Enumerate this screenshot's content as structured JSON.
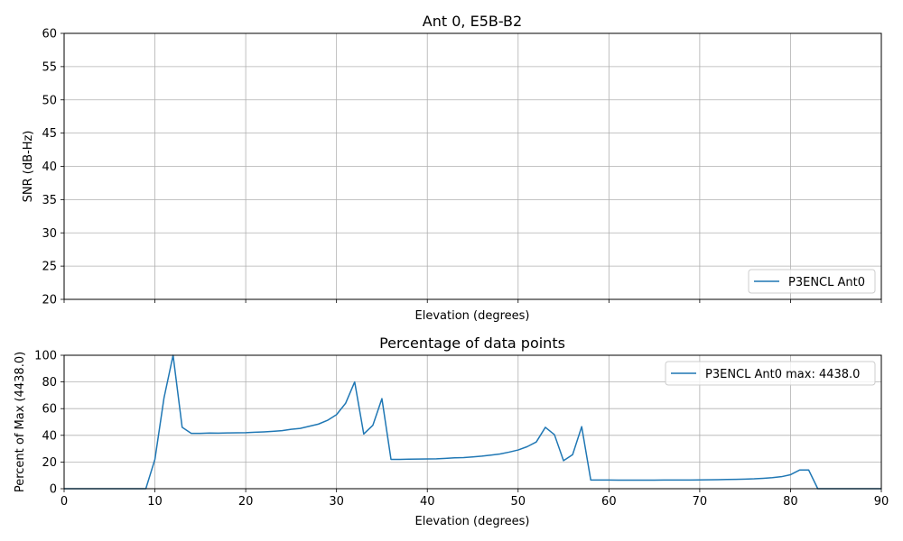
{
  "chart_data": [
    {
      "type": "line",
      "title": "Ant 0, E5B-B2",
      "xlabel": "Elevation (degrees)",
      "ylabel": "SNR (dB-Hz)",
      "xlim": [
        0,
        90
      ],
      "ylim": [
        20,
        60
      ],
      "xticks": [
        0,
        10,
        20,
        30,
        40,
        50,
        60,
        70,
        80,
        90
      ],
      "yticks": [
        20,
        25,
        30,
        35,
        40,
        45,
        50,
        55,
        60
      ],
      "x_tick_labels_visible": false,
      "grid": true,
      "legend": "lower-right",
      "series": [
        {
          "name": "P3ENCL Ant0",
          "color": "#1f77b4",
          "x": [],
          "y": []
        }
      ]
    },
    {
      "type": "line",
      "title": "Percentage of data points",
      "xlabel": "Elevation (degrees)",
      "ylabel": "Percent of Max (4438.0)",
      "xlim": [
        0,
        90
      ],
      "ylim": [
        0,
        100
      ],
      "xticks": [
        0,
        10,
        20,
        30,
        40,
        50,
        60,
        70,
        80,
        90
      ],
      "yticks": [
        0,
        20,
        40,
        60,
        80,
        100
      ],
      "x_tick_labels_visible": true,
      "grid": true,
      "legend": "upper-right",
      "series": [
        {
          "name": "P3ENCL Ant0 max: 4438.0",
          "color": "#1f77b4",
          "x": [
            0,
            1,
            2,
            3,
            4,
            5,
            6,
            7,
            8,
            9,
            10,
            11,
            12,
            13,
            14,
            15,
            16,
            17,
            18,
            19,
            20,
            21,
            22,
            23,
            24,
            25,
            26,
            27,
            28,
            29,
            30,
            31,
            32,
            33,
            34,
            35,
            36,
            37,
            38,
            39,
            40,
            41,
            42,
            43,
            44,
            45,
            46,
            47,
            48,
            49,
            50,
            51,
            52,
            53,
            54,
            55,
            56,
            57,
            58,
            59,
            60,
            61,
            62,
            63,
            64,
            65,
            66,
            67,
            68,
            69,
            70,
            71,
            72,
            73,
            74,
            75,
            76,
            77,
            78,
            79,
            80,
            81,
            82,
            83,
            84,
            85,
            86,
            87,
            88,
            89,
            90
          ],
          "y": [
            0,
            0,
            0,
            0,
            0,
            0,
            0,
            0,
            0,
            0,
            22,
            68,
            100,
            46,
            41.5,
            41.5,
            41.7,
            41.6,
            41.8,
            41.9,
            42,
            42.3,
            42.6,
            43,
            43.5,
            44.5,
            45.2,
            46.8,
            48.4,
            51.2,
            55.5,
            64,
            80,
            41,
            47.5,
            67.5,
            22,
            22,
            22.1,
            22.2,
            22.3,
            22.4,
            22.7,
            23.1,
            23.3,
            23.8,
            24.4,
            25.2,
            26,
            27.4,
            29,
            31.5,
            35,
            46,
            40.5,
            21,
            25.5,
            46.5,
            6.5,
            6.5,
            6.5,
            6.4,
            6.4,
            6.4,
            6.4,
            6.4,
            6.5,
            6.5,
            6.5,
            6.5,
            6.6,
            6.7,
            6.8,
            6.9,
            7,
            7.2,
            7.4,
            7.8,
            8.3,
            9,
            10.5,
            14,
            14,
            0,
            0,
            0,
            0,
            0,
            0,
            0,
            0
          ]
        }
      ]
    }
  ]
}
